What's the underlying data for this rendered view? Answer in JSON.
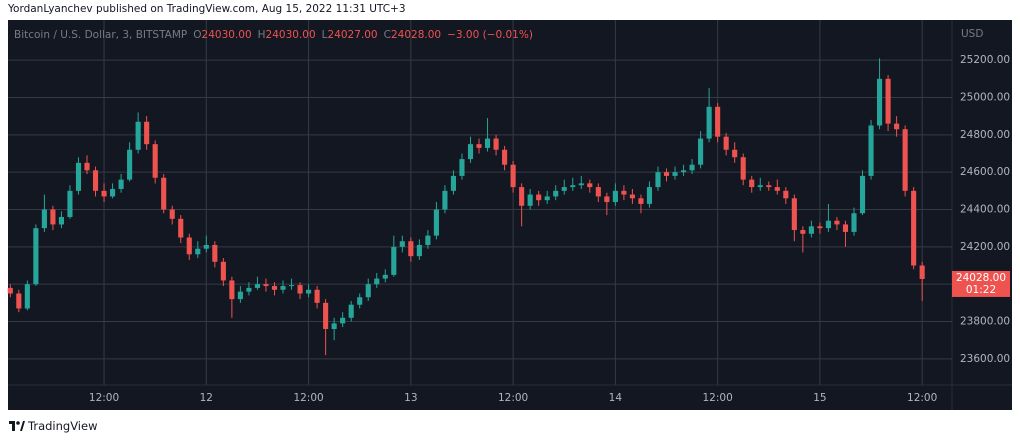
{
  "header": "YordanLyanchev published on TradingView.com, Aug 15, 2022 11:31 UTC+3",
  "footer": "TradingView",
  "chart_data": {
    "type": "candlestick",
    "legend": {
      "symbol": "Bitcoin / U.S. Dollar, 3, BITSTAMP",
      "ohlc": [
        {
          "key": "O",
          "value": "24030.00"
        },
        {
          "key": "H",
          "value": "24030.00"
        },
        {
          "key": "L",
          "value": "24027.00"
        },
        {
          "key": "C",
          "value": "24028.00"
        }
      ],
      "change": "−3.00 (−0.01%)"
    },
    "y_unit": "USD",
    "last_price": {
      "value": 24028,
      "label": "24028.00"
    },
    "countdown": "01:22",
    "up_color": "#26a69a",
    "down_color": "#ef5350",
    "grid": true,
    "xlim": [
      0.73,
      111.5
    ],
    "xticks": [
      {
        "value": 12,
        "label": "12:00"
      },
      {
        "value": 24,
        "label": "12"
      },
      {
        "value": 36,
        "label": "12:00"
      },
      {
        "value": 48,
        "label": "13"
      },
      {
        "value": 60,
        "label": "12:00"
      },
      {
        "value": 72,
        "label": "14"
      },
      {
        "value": 84,
        "label": "12:00"
      },
      {
        "value": 96,
        "label": "15"
      },
      {
        "value": 108,
        "label": "12:00"
      }
    ],
    "ylim": [
      23460,
      25415
    ],
    "yticks": [
      {
        "value": 23600,
        "label": "23600.00"
      },
      {
        "value": 23800,
        "label": "23800.00"
      },
      {
        "value": 24000,
        "label": "24000.00"
      },
      {
        "value": 24200,
        "label": "24200.00"
      },
      {
        "value": 24400,
        "label": "24400.00"
      },
      {
        "value": 24600,
        "label": "24600.00"
      },
      {
        "value": 24800,
        "label": "24800.00"
      },
      {
        "value": 25000,
        "label": "25000.00"
      },
      {
        "value": 25200,
        "label": "25200.00"
      }
    ],
    "x": [
      1,
      2,
      3,
      4,
      5,
      6,
      7,
      8,
      9,
      10,
      11,
      12,
      13,
      14,
      15,
      16,
      17,
      18,
      19,
      20,
      21,
      22,
      23,
      24,
      25,
      26,
      27,
      28,
      29,
      30,
      31,
      32,
      33,
      34,
      35,
      36,
      37,
      38,
      39,
      40,
      41,
      42,
      43,
      44,
      45,
      46,
      47,
      48,
      49,
      50,
      51,
      52,
      53,
      54,
      55,
      56,
      57,
      58,
      59,
      60,
      61,
      62,
      63,
      64,
      65,
      66,
      67,
      68,
      69,
      70,
      71,
      72,
      73,
      74,
      75,
      76,
      77,
      78,
      79,
      80,
      81,
      82,
      83,
      84,
      85,
      86,
      87,
      88,
      89,
      90,
      91,
      92,
      93,
      94,
      95,
      96,
      97,
      98,
      99,
      100,
      101,
      102,
      103,
      104,
      105,
      106,
      107,
      108
    ],
    "candles": [
      [
        23980,
        24000,
        23930,
        23950
      ],
      [
        23950,
        23970,
        23850,
        23870
      ],
      [
        23870,
        24020,
        23860,
        24000
      ],
      [
        24000,
        24320,
        23990,
        24300
      ],
      [
        24300,
        24480,
        24280,
        24400
      ],
      [
        24400,
        24420,
        24290,
        24320
      ],
      [
        24320,
        24390,
        24300,
        24360
      ],
      [
        24360,
        24530,
        24350,
        24500
      ],
      [
        24500,
        24680,
        24480,
        24650
      ],
      [
        24650,
        24690,
        24590,
        24610
      ],
      [
        24610,
        24630,
        24470,
        24500
      ],
      [
        24500,
        24540,
        24440,
        24470
      ],
      [
        24470,
        24540,
        24460,
        24510
      ],
      [
        24510,
        24590,
        24490,
        24560
      ],
      [
        24560,
        24760,
        24550,
        24720
      ],
      [
        24720,
        24920,
        24700,
        24870
      ],
      [
        24870,
        24900,
        24720,
        24750
      ],
      [
        24750,
        24770,
        24540,
        24570
      ],
      [
        24570,
        24590,
        24380,
        24400
      ],
      [
        24400,
        24420,
        24320,
        24350
      ],
      [
        24350,
        24370,
        24220,
        24250
      ],
      [
        24250,
        24270,
        24130,
        24160
      ],
      [
        24160,
        24230,
        24140,
        24190
      ],
      [
        24190,
        24260,
        24170,
        24210
      ],
      [
        24210,
        24230,
        24090,
        24120
      ],
      [
        24120,
        24140,
        23990,
        24020
      ],
      [
        24020,
        24040,
        23820,
        23920
      ],
      [
        23920,
        23990,
        23900,
        23960
      ],
      [
        23960,
        24010,
        23940,
        23980
      ],
      [
        23980,
        24040,
        23970,
        24000
      ],
      [
        24000,
        24030,
        23960,
        23990
      ],
      [
        23990,
        24010,
        23940,
        23970
      ],
      [
        23970,
        24020,
        23950,
        23990
      ],
      [
        23990,
        24030,
        23970,
        23995
      ],
      [
        23995,
        24010,
        23920,
        23950
      ],
      [
        23950,
        24000,
        23930,
        23970
      ],
      [
        23970,
        23990,
        23870,
        23900
      ],
      [
        23900,
        23920,
        23620,
        23760
      ],
      [
        23760,
        23820,
        23700,
        23790
      ],
      [
        23790,
        23850,
        23770,
        23820
      ],
      [
        23820,
        23910,
        23800,
        23890
      ],
      [
        23890,
        23950,
        23870,
        23930
      ],
      [
        23930,
        24030,
        23910,
        24000
      ],
      [
        24000,
        24060,
        23980,
        24030
      ],
      [
        24030,
        24080,
        24010,
        24050
      ],
      [
        24050,
        24260,
        24040,
        24200
      ],
      [
        24200,
        24260,
        24170,
        24230
      ],
      [
        24230,
        24250,
        24120,
        24150
      ],
      [
        24150,
        24240,
        24130,
        24210
      ],
      [
        24210,
        24290,
        24190,
        24260
      ],
      [
        24260,
        24440,
        24240,
        24400
      ],
      [
        24400,
        24530,
        24380,
        24500
      ],
      [
        24500,
        24610,
        24480,
        24580
      ],
      [
        24580,
        24700,
        24560,
        24670
      ],
      [
        24670,
        24790,
        24650,
        24750
      ],
      [
        24750,
        24780,
        24700,
        24730
      ],
      [
        24730,
        24890,
        24710,
        24780
      ],
      [
        24780,
        24800,
        24690,
        24720
      ],
      [
        24720,
        24740,
        24610,
        24640
      ],
      [
        24640,
        24660,
        24490,
        24520
      ],
      [
        24520,
        24540,
        24310,
        24420
      ],
      [
        24420,
        24510,
        24400,
        24480
      ],
      [
        24480,
        24500,
        24420,
        24450
      ],
      [
        24450,
        24500,
        24430,
        24470
      ],
      [
        24470,
        24530,
        24450,
        24500
      ],
      [
        24500,
        24560,
        24480,
        24520
      ],
      [
        24520,
        24570,
        24500,
        24530
      ],
      [
        24530,
        24580,
        24510,
        24540
      ],
      [
        24540,
        24560,
        24490,
        24520
      ],
      [
        24520,
        24540,
        24440,
        24470
      ],
      [
        24470,
        24490,
        24370,
        24440
      ],
      [
        24440,
        24540,
        24420,
        24500
      ],
      [
        24500,
        24530,
        24450,
        24480
      ],
      [
        24480,
        24510,
        24430,
        24460
      ],
      [
        24460,
        24480,
        24380,
        24430
      ],
      [
        24430,
        24550,
        24410,
        24520
      ],
      [
        24520,
        24630,
        24500,
        24600
      ],
      [
        24600,
        24620,
        24550,
        24580
      ],
      [
        24580,
        24630,
        24560,
        24600
      ],
      [
        24600,
        24640,
        24580,
        24610
      ],
      [
        24610,
        24670,
        24590,
        24640
      ],
      [
        24640,
        24820,
        24620,
        24780
      ],
      [
        24780,
        25050,
        24760,
        24950
      ],
      [
        24950,
        24970,
        24760,
        24790
      ],
      [
        24790,
        24810,
        24690,
        24720
      ],
      [
        24720,
        24760,
        24650,
        24680
      ],
      [
        24680,
        24700,
        24530,
        24560
      ],
      [
        24560,
        24580,
        24490,
        24520
      ],
      [
        24520,
        24570,
        24500,
        24530
      ],
      [
        24530,
        24550,
        24500,
        24520
      ],
      [
        24520,
        24560,
        24480,
        24500
      ],
      [
        24500,
        24520,
        24430,
        24460
      ],
      [
        24460,
        24480,
        24230,
        24290
      ],
      [
        24290,
        24310,
        24170,
        24270
      ],
      [
        24270,
        24340,
        24250,
        24310
      ],
      [
        24310,
        24330,
        24270,
        24300
      ],
      [
        24300,
        24430,
        24280,
        24340
      ],
      [
        24340,
        24360,
        24290,
        24320
      ],
      [
        24320,
        24340,
        24200,
        24280
      ],
      [
        24280,
        24410,
        24260,
        24380
      ],
      [
        24380,
        24610,
        24370,
        24580
      ],
      [
        24580,
        24880,
        24560,
        24850
      ],
      [
        24850,
        25210,
        24830,
        25100
      ],
      [
        25100,
        25120,
        24820,
        24860
      ],
      [
        24860,
        24900,
        24790,
        24830
      ],
      [
        24830,
        24850,
        24470,
        24500
      ],
      [
        24500,
        24520,
        24080,
        24100
      ],
      [
        24100,
        24120,
        23910,
        24028
      ]
    ]
  }
}
